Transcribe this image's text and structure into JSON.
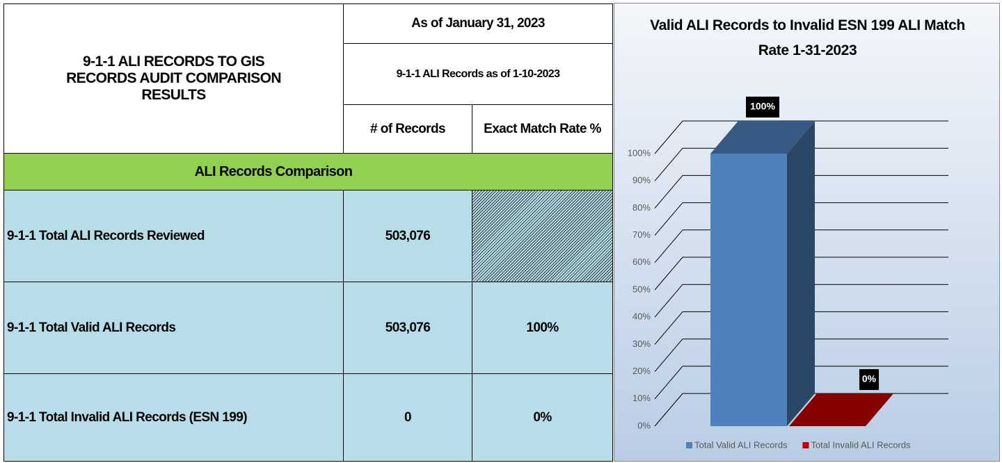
{
  "table": {
    "title": "9-1-1 ALI RECORDS TO GIS RECORDS AUDIT COMPARISON RESULTS",
    "as_of": "As of January 31, 2023",
    "records_as_of": "9-1-1 ALI Records as of 1-10-2023",
    "columns": [
      "# of Records",
      "Exact Match Rate %"
    ],
    "section": "ALI Records Comparison",
    "rows": [
      [
        "9-1-1 Total ALI Records Reviewed",
        "503,076"
      ],
      [
        "9-1-1 Total Valid ALI Records",
        "503,076",
        "100%"
      ],
      [
        "9-1-1 Total Invalid ALI Records (ESN 199)",
        "0",
        "0%"
      ]
    ]
  },
  "chart_data": {
    "type": "bar",
    "title": "Valid ALI Records to Invalid ESN 199 ALI Match Rate 1-31-2023",
    "categories": [
      "Total Valid ALI Records",
      "Total Invalid ALI Records"
    ],
    "values": [
      100,
      0
    ],
    "value_labels": [
      "100%",
      "0%"
    ],
    "colors": [
      "#4f81bd",
      "#c00000"
    ],
    "ylim": [
      0,
      100
    ],
    "yticks": [
      {
        "value": 0,
        "label": "0%"
      },
      {
        "value": 10,
        "label": "10%"
      },
      {
        "value": 20,
        "label": "20%"
      },
      {
        "value": 30,
        "label": "30%"
      },
      {
        "value": 40,
        "label": "40%"
      },
      {
        "value": 50,
        "label": "50%"
      },
      {
        "value": 60,
        "label": "60%"
      },
      {
        "value": 70,
        "label": "70%"
      },
      {
        "value": 80,
        "label": "80%"
      },
      {
        "value": 90,
        "label": "90%"
      },
      {
        "value": 100,
        "label": "100%"
      }
    ],
    "grid": true,
    "legend": "bottom"
  }
}
